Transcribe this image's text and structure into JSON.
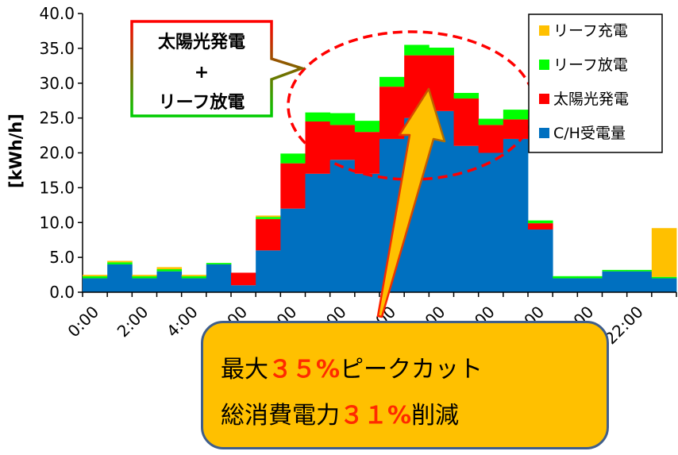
{
  "chart_data": {
    "type": "bar",
    "stacked": true,
    "ylabel": "[kWh/h]",
    "ylim": [
      0,
      40
    ],
    "yticks": [
      "0.0",
      "5.0",
      "10.0",
      "15.0",
      "20.0",
      "25.0",
      "30.0",
      "35.0",
      "40.0"
    ],
    "categories": [
      "0:00",
      "1:00",
      "2:00",
      "3:00",
      "4:00",
      "5:00",
      "6:00",
      "7:00",
      "8:00",
      "9:00",
      "10:00",
      "11:00",
      "12:00",
      "13:00",
      "14:00",
      "15:00",
      "16:00",
      "17:00",
      "18:00",
      "19:00",
      "20:00",
      "21:00",
      "22:00",
      "23:00"
    ],
    "xtick_labels": [
      "0:00",
      "",
      "2:00",
      "",
      "4:00",
      "",
      "6:00",
      "",
      "8:00",
      "",
      "10:00",
      "",
      "12:00",
      "",
      "14:00",
      "",
      "16:00",
      "",
      "18:00",
      "",
      "20:00",
      "",
      "22:00",
      ""
    ],
    "series": [
      {
        "name": "C/H受電量",
        "color": "#0070C0",
        "values": [
          2.0,
          4.0,
          2.0,
          3.0,
          2.0,
          4.0,
          1.0,
          6.0,
          12.0,
          17.0,
          19.0,
          17.0,
          22.0,
          25.0,
          26.0,
          21.0,
          20.0,
          22.0,
          9.0,
          2.0,
          2.0,
          3.0,
          3.0,
          2.0
        ]
      },
      {
        "name": "太陽光発電",
        "color": "#FF0000",
        "values": [
          0,
          0,
          0,
          0,
          0,
          0,
          1.8,
          4.5,
          6.5,
          7.5,
          5.0,
          6.0,
          7.5,
          9.0,
          8.0,
          6.8,
          4.0,
          2.8,
          0.9,
          0,
          0,
          0,
          0,
          0
        ]
      },
      {
        "name": "リーフ放電",
        "color": "#00FF00",
        "values": [
          0.3,
          0.3,
          0.3,
          0.3,
          0.3,
          0.2,
          0,
          0.3,
          1.4,
          1.3,
          1.7,
          1.6,
          1.4,
          1.5,
          1.1,
          0.8,
          0.9,
          1.4,
          0.4,
          0.3,
          0.3,
          0.2,
          0.2,
          0.2
        ]
      },
      {
        "name": "リーフ充電",
        "color": "#FFC000",
        "values": [
          0.2,
          0.2,
          0.2,
          0.3,
          0.2,
          0,
          0,
          0.2,
          0,
          0,
          0,
          0,
          0,
          0,
          0,
          0,
          0,
          0,
          0,
          0,
          0,
          0,
          0,
          7.0
        ]
      }
    ],
    "legend_position": "top-right",
    "legend_order": [
      "リーフ充電",
      "リーフ放電",
      "太陽光発電",
      "C/H受電量"
    ],
    "annotation": {
      "line1": "太陽光発電",
      "line2": "+",
      "line3": "リーフ放電"
    },
    "callout": {
      "line1_prefix": "最大",
      "line1_value": "３５%",
      "line1_suffix": "ピークカット",
      "line2_prefix": "総消費電力",
      "line2_value": "３１%",
      "line2_suffix": "削減"
    }
  }
}
